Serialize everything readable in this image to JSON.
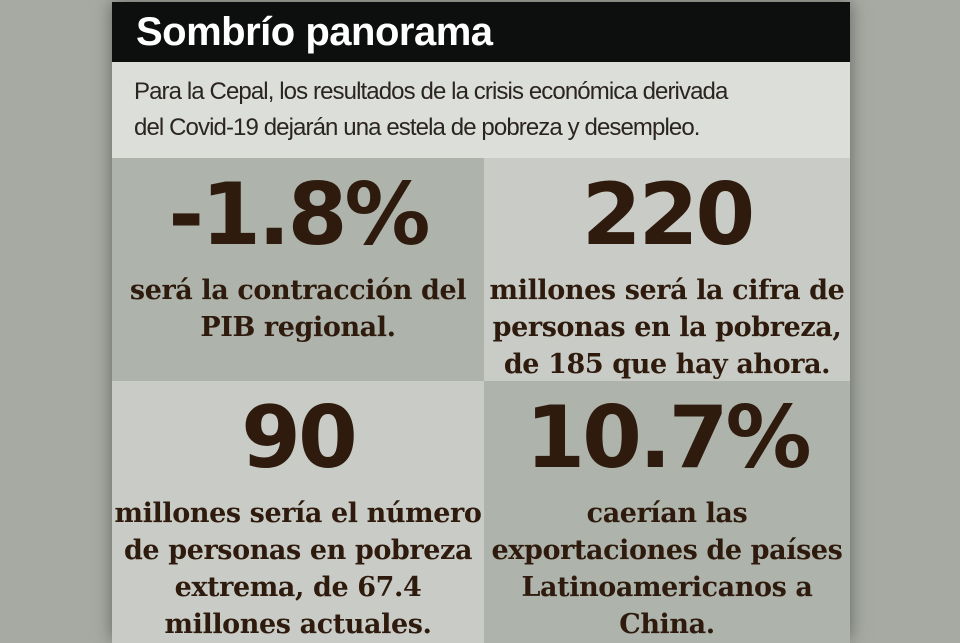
{
  "header": {
    "title": "Sombrío panorama"
  },
  "subtitle": {
    "lines": [
      "Para la Cepal, los resultados de la crisis económica derivada",
      "del Covid-19 dejarán una estela de pobreza y desempleo."
    ]
  },
  "stats": [
    {
      "value": "-1.8%",
      "caption_lines": [
        "será la contracción del",
        "PIB regional."
      ]
    },
    {
      "value": "220",
      "caption_lines": [
        "millones será la cifra de",
        "personas en la pobreza,",
        "de 185 que hay ahora."
      ]
    },
    {
      "value": "90",
      "caption_lines": [
        "millones sería el número",
        "de personas en pobreza",
        "extrema, de 67.4",
        "millones actuales."
      ]
    },
    {
      "value": "10.7%",
      "caption_lines": [
        "caerían las",
        "exportaciones de países",
        "Latinoamericanos a",
        "China."
      ]
    }
  ],
  "colors": {
    "outer_background": "#a7aaa3",
    "header_background": "#0c0f0d",
    "header_text": "#ffffff",
    "subtitle_background": "#dcded9",
    "subtitle_text": "#2b2522",
    "cell_dark": "#aeb3ab",
    "cell_light": "#c9ccc6",
    "stat_text": "#2e1b0d"
  },
  "chart_data": {
    "type": "table",
    "title": "Sombrío panorama",
    "subtitle": "Para la Cepal, los resultados de la crisis económica derivada del Covid-19 dejarán una estela de pobreza y desempleo.",
    "source": "Cepal",
    "stats": [
      {
        "value": -1.8,
        "unit": "%",
        "label": "será la contracción del PIB regional."
      },
      {
        "value": 220,
        "unit": "millones de personas",
        "label": "millones será la cifra de personas en la pobreza, de 185 que hay ahora."
      },
      {
        "value": 90,
        "unit": "millones de personas",
        "label": "millones sería el número de personas en pobreza extrema, de 67.4 millones actuales."
      },
      {
        "value": -10.7,
        "unit": "%",
        "label": "caerían las exportaciones de países Latinoamericanos a China."
      }
    ]
  }
}
